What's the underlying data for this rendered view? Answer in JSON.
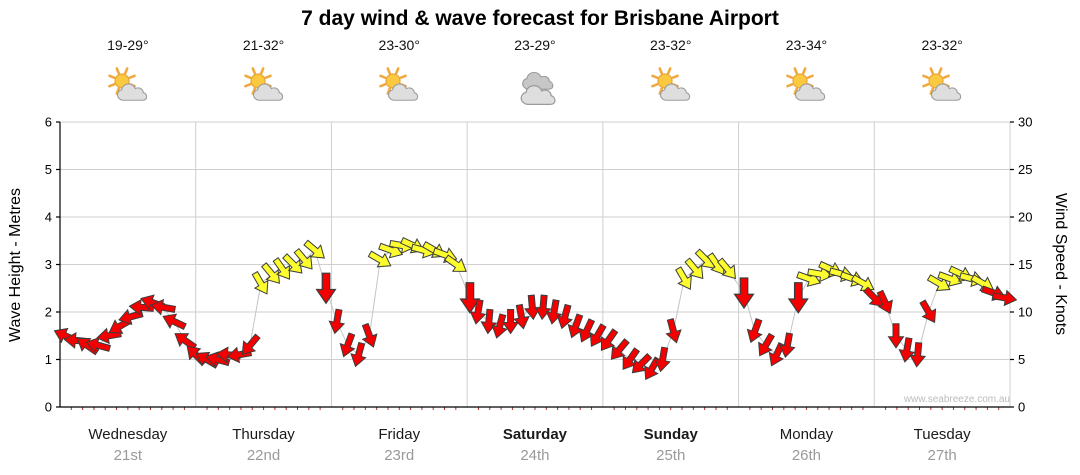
{
  "title": "7 day wind & wave forecast for Brisbane Airport",
  "watermark": "www.seabreeze.com.au",
  "axes": {
    "left_label": "Wave Height - Metres",
    "right_label": "Wind Speed - Knots",
    "left_ticks": [
      "0",
      "1",
      "2",
      "3",
      "4",
      "5",
      "6"
    ],
    "right_ticks": [
      "0",
      "5",
      "10",
      "15",
      "20",
      "25",
      "30"
    ],
    "left_range_metres": [
      0,
      6
    ],
    "right_range_knots": [
      0,
      30
    ]
  },
  "days": [
    {
      "name": "Wednesday",
      "date": "21st",
      "temp": "19-29°",
      "icon": "partly-cloudy",
      "weekend": false
    },
    {
      "name": "Thursday",
      "date": "22nd",
      "temp": "21-32°",
      "icon": "partly-cloudy",
      "weekend": false
    },
    {
      "name": "Friday",
      "date": "23rd",
      "temp": "23-30°",
      "icon": "partly-cloudy",
      "weekend": false
    },
    {
      "name": "Saturday",
      "date": "24th",
      "temp": "23-29°",
      "icon": "cloudy",
      "weekend": true
    },
    {
      "name": "Sunday",
      "date": "25th",
      "temp": "23-32°",
      "icon": "partly-cloudy",
      "weekend": true
    },
    {
      "name": "Monday",
      "date": "26th",
      "temp": "23-34°",
      "icon": "partly-cloudy",
      "weekend": false
    },
    {
      "name": "Tuesday",
      "date": "27th",
      "temp": "23-32°",
      "icon": "partly-cloudy",
      "weekend": false
    }
  ],
  "chart_data": {
    "type": "wind-arrows",
    "title": "7 day wind & wave forecast for Brisbane Airport",
    "categories": [
      "Wednesday",
      "Thursday",
      "Friday",
      "Saturday",
      "Sunday",
      "Monday",
      "Tuesday"
    ],
    "ylabel_left": "Wave Height - Metres",
    "ylabel_right": "Wind Speed - Knots",
    "ylim_left_metres": [
      0,
      6
    ],
    "ylim_right_knots": [
      0,
      30
    ],
    "grid": true,
    "arrow_color_rule": {
      "yellow_at_or_above_knots": 13,
      "red": "#f40000",
      "yellow": "#fdfd2e"
    },
    "point_format": [
      "day_offset_0_to_7",
      "wind_knots",
      "arrow_direction_deg_cw_from_east",
      "optional_size_multiplier"
    ],
    "points": [
      [
        0.04,
        7.5,
        205
      ],
      [
        0.12,
        7,
        185
      ],
      [
        0.2,
        6.5,
        215
      ],
      [
        0.28,
        6.5,
        195
      ],
      [
        0.36,
        7.5,
        170
      ],
      [
        0.44,
        8.5,
        150
      ],
      [
        0.52,
        9.5,
        165
      ],
      [
        0.6,
        10.5,
        185
      ],
      [
        0.68,
        11,
        200
      ],
      [
        0.76,
        10.5,
        190
      ],
      [
        0.84,
        9,
        205
      ],
      [
        0.92,
        7,
        215
      ],
      [
        1.0,
        5.5,
        225
      ],
      [
        1.08,
        5,
        210
      ],
      [
        1.16,
        5,
        195
      ],
      [
        1.24,
        5.5,
        185
      ],
      [
        1.32,
        5.5,
        170
      ],
      [
        1.4,
        6.5,
        130
      ],
      [
        1.48,
        13,
        60
      ],
      [
        1.56,
        14,
        50
      ],
      [
        1.64,
        14.5,
        55
      ],
      [
        1.72,
        15,
        45
      ],
      [
        1.8,
        15.5,
        50
      ],
      [
        1.88,
        16.5,
        40
      ],
      [
        1.96,
        12.5,
        90,
        1.25
      ],
      [
        2.04,
        9,
        100
      ],
      [
        2.12,
        6.5,
        110
      ],
      [
        2.2,
        5.5,
        105
      ],
      [
        2.28,
        7.5,
        70
      ],
      [
        2.36,
        15.5,
        30
      ],
      [
        2.44,
        16.5,
        20
      ],
      [
        2.52,
        17,
        10
      ],
      [
        2.6,
        17,
        25
      ],
      [
        2.68,
        16.5,
        15
      ],
      [
        2.76,
        16.5,
        30
      ],
      [
        2.84,
        16,
        20
      ],
      [
        2.92,
        15,
        35
      ],
      [
        3.02,
        11.5,
        90,
        1.25
      ],
      [
        3.08,
        10,
        100
      ],
      [
        3.16,
        9,
        95
      ],
      [
        3.24,
        8.5,
        105
      ],
      [
        3.32,
        9,
        90
      ],
      [
        3.4,
        9.5,
        80
      ],
      [
        3.48,
        10.5,
        85
      ],
      [
        3.56,
        10.5,
        95
      ],
      [
        3.64,
        10,
        100
      ],
      [
        3.72,
        9.5,
        105
      ],
      [
        3.8,
        8.5,
        110
      ],
      [
        3.88,
        8,
        115
      ],
      [
        3.96,
        7.5,
        120
      ],
      [
        4.04,
        7,
        125
      ],
      [
        4.12,
        6,
        130
      ],
      [
        4.2,
        5,
        125
      ],
      [
        4.28,
        4.5,
        135
      ],
      [
        4.36,
        4,
        120
      ],
      [
        4.44,
        5,
        100
      ],
      [
        4.52,
        8,
        75
      ],
      [
        4.6,
        13.5,
        60
      ],
      [
        4.68,
        14.5,
        50
      ],
      [
        4.76,
        15.5,
        45
      ],
      [
        4.84,
        15,
        55
      ],
      [
        4.92,
        14.5,
        50
      ],
      [
        5.04,
        12,
        90,
        1.25
      ],
      [
        5.12,
        8,
        110
      ],
      [
        5.2,
        6.5,
        120
      ],
      [
        5.28,
        5.5,
        115
      ],
      [
        5.36,
        6.5,
        100
      ],
      [
        5.44,
        11.5,
        90,
        1.25
      ],
      [
        5.52,
        13.5,
        20
      ],
      [
        5.6,
        14,
        10
      ],
      [
        5.68,
        14.5,
        25
      ],
      [
        5.76,
        14,
        15
      ],
      [
        5.84,
        13.5,
        20
      ],
      [
        5.92,
        13,
        30
      ],
      [
        6.0,
        11.5,
        45
      ],
      [
        6.08,
        11,
        65
      ],
      [
        6.16,
        7.5,
        90
      ],
      [
        6.24,
        6,
        100
      ],
      [
        6.32,
        5.5,
        95
      ],
      [
        6.4,
        10,
        60
      ],
      [
        6.48,
        13,
        30
      ],
      [
        6.56,
        13.5,
        20
      ],
      [
        6.64,
        14,
        25
      ],
      [
        6.72,
        13.5,
        15
      ],
      [
        6.8,
        13,
        30
      ],
      [
        6.88,
        12,
        20
      ],
      [
        6.96,
        11.5,
        10
      ]
    ]
  },
  "colors": {
    "grid": "#cfcfcf",
    "axis": "#000000",
    "minor_tick": "#b03030",
    "date_text": "#9a9a9a",
    "arrow_outline": "#3c3c3c"
  }
}
